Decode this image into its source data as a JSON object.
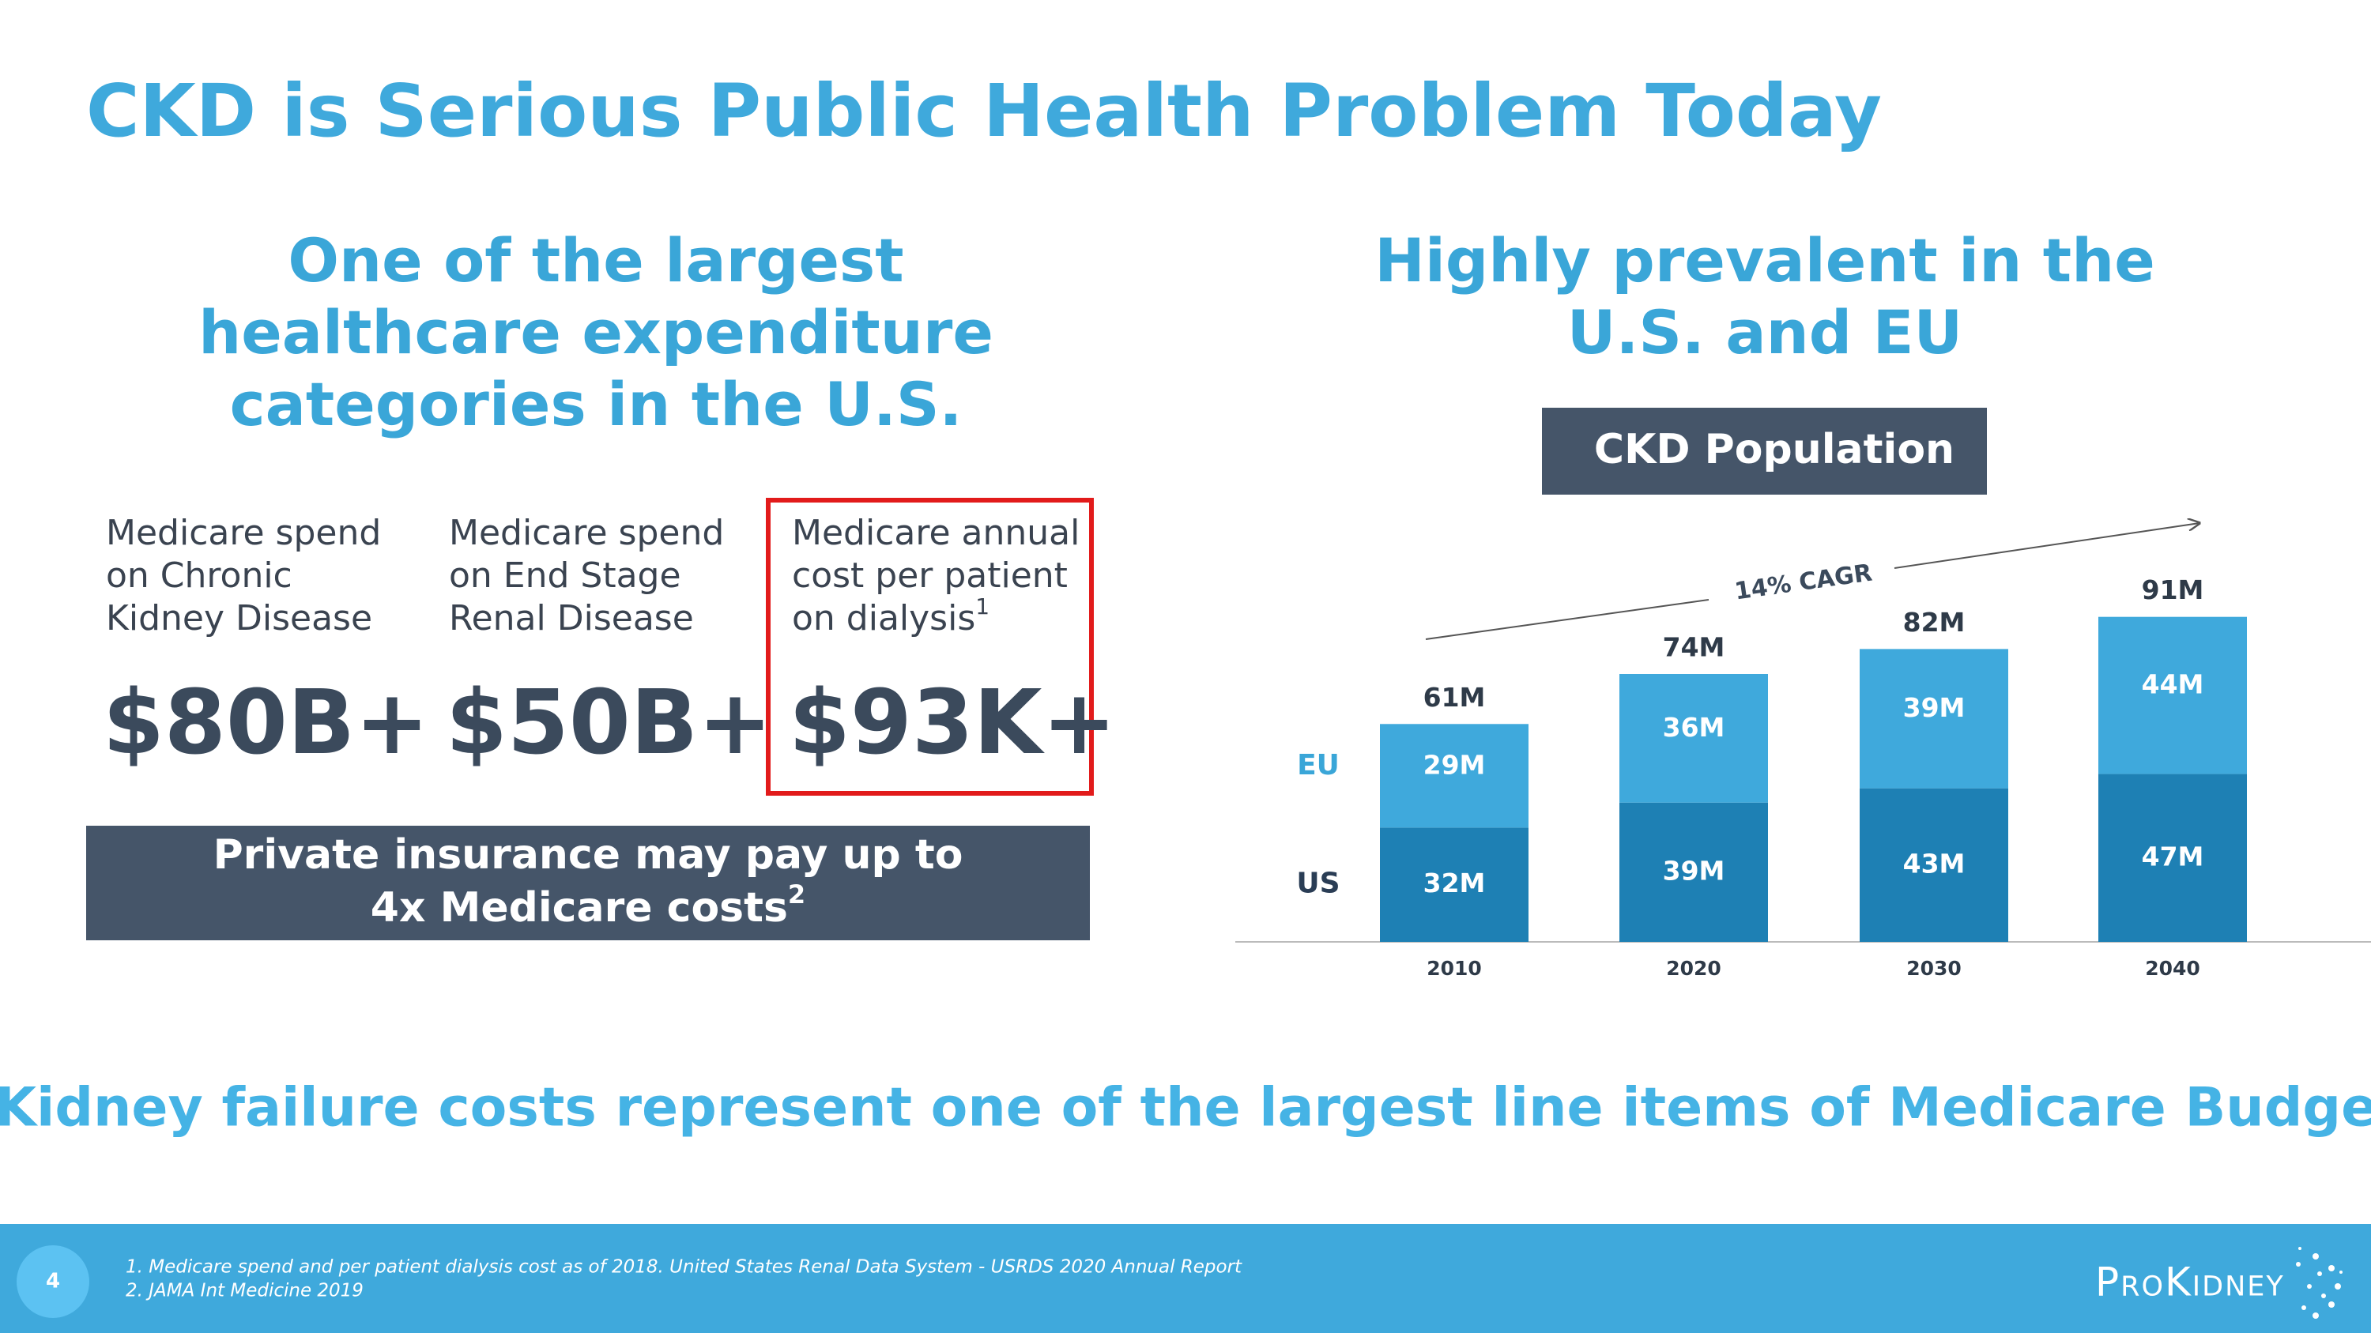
{
  "title": "CKD is Serious Public Health Problem Today",
  "left": {
    "heading": [
      "One of the largest",
      "healthcare expenditure",
      "categories in the U.S."
    ],
    "stats": [
      {
        "label": [
          "Medicare spend",
          "on Chronic",
          "Kidney Disease"
        ],
        "value": "$80B+"
      },
      {
        "label": [
          "Medicare spend",
          "on End Stage",
          "Renal Disease"
        ],
        "value": "$50B+"
      },
      {
        "label": [
          "Medicare annual",
          "cost per patient",
          "on dialysis"
        ],
        "superscript": "1",
        "value": "$93K+"
      }
    ],
    "note": {
      "lines": [
        "Private insurance may pay up to",
        "4x Medicare costs"
      ],
      "superscript": "2"
    }
  },
  "right": {
    "heading": [
      "Highly prevalent in the",
      "U.S. and EU"
    ],
    "box": "CKD Population"
  },
  "chart_data": {
    "type": "stacked_bar",
    "categories": [
      "2010",
      "2020",
      "2030",
      "2040"
    ],
    "series": [
      {
        "name": "US",
        "color": "#1e80b4",
        "label_color": "#2a3d55",
        "values": [
          32,
          39,
          43,
          47
        ],
        "value_labels": [
          "32M",
          "39M",
          "43M",
          "47M"
        ]
      },
      {
        "name": "EU",
        "color": "#3fa9dc",
        "label_color": "#3aa6d8",
        "values": [
          29,
          36,
          39,
          44
        ],
        "value_labels": [
          "29M",
          "36M",
          "39M",
          "44M"
        ]
      }
    ],
    "totals": {
      "values": [
        61,
        74,
        82,
        91
      ],
      "value_labels": [
        "61M",
        "74M",
        "82M",
        "91M"
      ]
    },
    "annotation": "14% CAGR"
  },
  "statement": "Kidney failure costs represent one of the largest line items of Medicare Budget",
  "footer": {
    "page": "4",
    "footnotes": [
      "1. Medicare spend and per patient dialysis cost as of 2018. United States Renal Data System - USRDS 2020 Annual Report",
      "2. JAMA Int Medicine 2019"
    ],
    "logo": "ProKidney"
  }
}
